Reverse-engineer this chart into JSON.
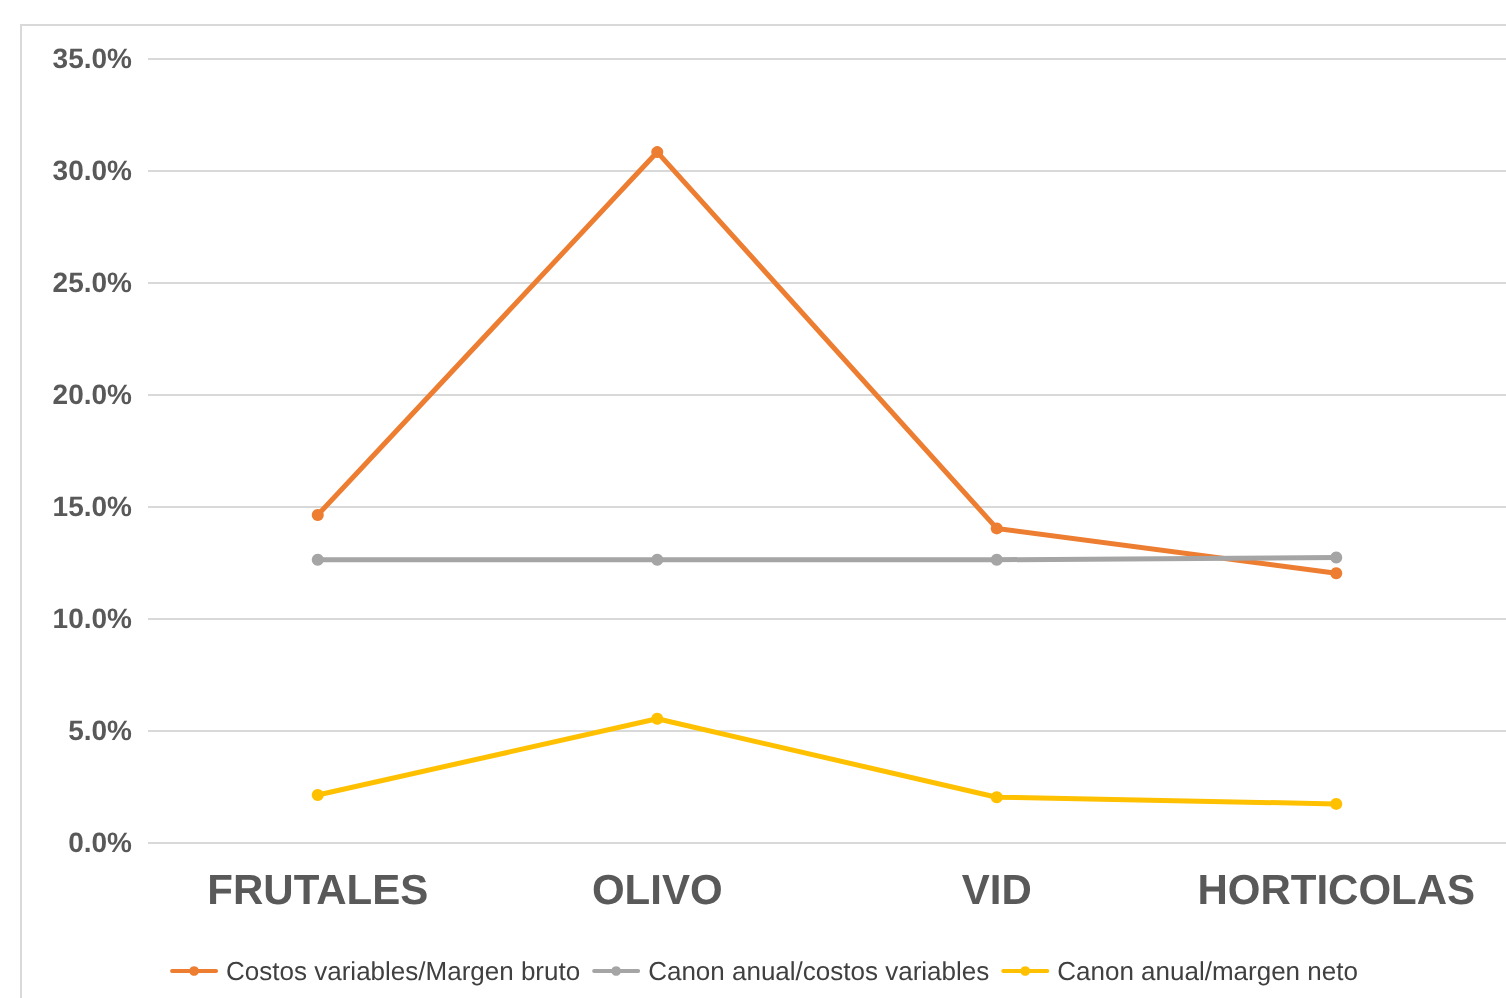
{
  "chart_data": {
    "type": "line",
    "categories": [
      "FRUTALES",
      "OLIVO",
      "VID",
      "HORTICOLAS"
    ],
    "series": [
      {
        "name": "Costos variables/Margen bruto",
        "color": "#ed7d31",
        "values": [
          14.6,
          30.8,
          14.0,
          12.0
        ]
      },
      {
        "name": "Canon anual/costos variables",
        "color": "#a5a5a5",
        "values": [
          12.6,
          12.6,
          12.6,
          12.7
        ]
      },
      {
        "name": "Canon anual/margen neto",
        "color": "#ffc000",
        "values": [
          2.1,
          5.5,
          2.0,
          1.7
        ]
      }
    ],
    "ylim": [
      0,
      35
    ],
    "yticks": [
      {
        "value": 0,
        "label": "0.0%"
      },
      {
        "value": 5,
        "label": "5.0%"
      },
      {
        "value": 10,
        "label": "10.0%"
      },
      {
        "value": 15,
        "label": "15.0%"
      },
      {
        "value": 20,
        "label": "20.0%"
      },
      {
        "value": 25,
        "label": "25.0%"
      },
      {
        "value": 30,
        "label": "30.0%"
      },
      {
        "value": 35,
        "label": "35.0%"
      }
    ],
    "grid": "y",
    "legend": "bottom",
    "marker": "circle",
    "line_style": "solid"
  }
}
